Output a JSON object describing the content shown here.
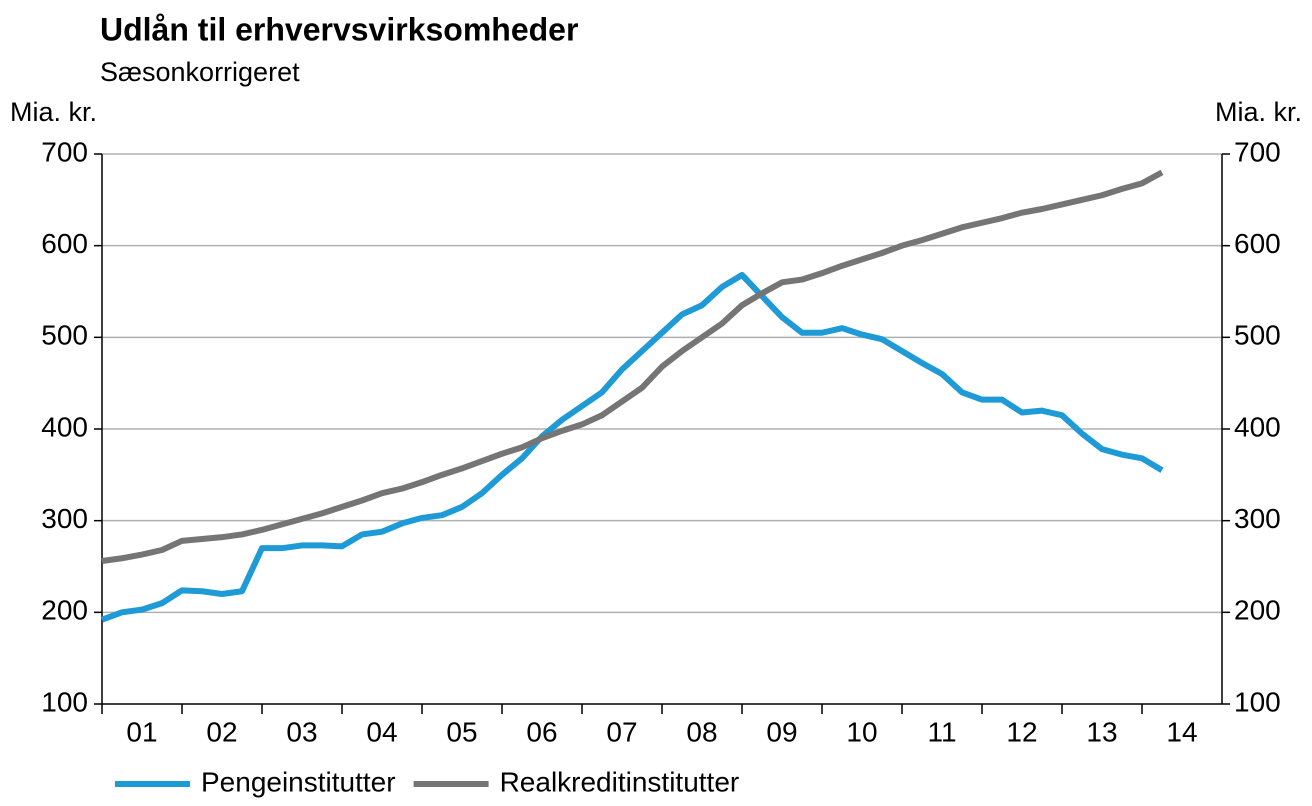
{
  "chart_data": {
    "type": "line",
    "title": "Udlån til erhvervsvirksomheder",
    "subtitle": "Sæsonkorrigeret",
    "ylabel": "Mia. kr.",
    "y2label": "Mia. kr.",
    "x": [
      2001,
      2001.25,
      2001.5,
      2001.75,
      2002,
      2002.25,
      2002.5,
      2002.75,
      2003,
      2003.25,
      2003.5,
      2003.75,
      2004,
      2004.25,
      2004.5,
      2004.75,
      2005,
      2005.25,
      2005.5,
      2005.75,
      2006,
      2006.25,
      2006.5,
      2006.75,
      2007,
      2007.25,
      2007.5,
      2007.75,
      2008,
      2008.25,
      2008.5,
      2008.75,
      2009,
      2009.25,
      2009.5,
      2009.75,
      2010,
      2010.25,
      2010.5,
      2010.75,
      2011,
      2011.25,
      2011.5,
      2011.75,
      2012,
      2012.25,
      2012.5,
      2012.75,
      2013,
      2013.25,
      2013.5,
      2013.75,
      2014,
      2014.25
    ],
    "series": [
      {
        "name": "Pengeinstitutter",
        "color": "#1e9ad6",
        "values": [
          192,
          200,
          203,
          210,
          224,
          223,
          220,
          223,
          270,
          270,
          273,
          273,
          272,
          285,
          288,
          297,
          303,
          306,
          315,
          330,
          350,
          368,
          392,
          410,
          425,
          440,
          465,
          485,
          505,
          525,
          535,
          555,
          568,
          545,
          522,
          505,
          505,
          510,
          503,
          498,
          485,
          472,
          460,
          440,
          432,
          432,
          418,
          420,
          415,
          395,
          378,
          372,
          368,
          355
        ]
      },
      {
        "name": "Realkreditinstitutter",
        "color": "#757575",
        "values": [
          256,
          259,
          263,
          268,
          278,
          280,
          282,
          285,
          290,
          296,
          302,
          308,
          315,
          322,
          330,
          335,
          342,
          350,
          357,
          365,
          373,
          380,
          390,
          398,
          405,
          415,
          430,
          445,
          468,
          485,
          500,
          515,
          535,
          548,
          560,
          563,
          570,
          578,
          585,
          592,
          600,
          606,
          613,
          620,
          625,
          630,
          636,
          640,
          645,
          650,
          655,
          662,
          668,
          680
        ]
      }
    ],
    "xlim": [
      2001,
      2015
    ],
    "xticks": [
      {
        "value": 2001,
        "label": "01"
      },
      {
        "value": 2002,
        "label": "02"
      },
      {
        "value": 2003,
        "label": "03"
      },
      {
        "value": 2004,
        "label": "04"
      },
      {
        "value": 2005,
        "label": "05"
      },
      {
        "value": 2006,
        "label": "06"
      },
      {
        "value": 2007,
        "label": "07"
      },
      {
        "value": 2008,
        "label": "08"
      },
      {
        "value": 2009,
        "label": "09"
      },
      {
        "value": 2010,
        "label": "10"
      },
      {
        "value": 2011,
        "label": "11"
      },
      {
        "value": 2012,
        "label": "12"
      },
      {
        "value": 2013,
        "label": "13"
      },
      {
        "value": 2014,
        "label": "14"
      }
    ],
    "ylim": [
      100,
      700
    ],
    "yticks": [
      100,
      200,
      300,
      400,
      500,
      600,
      700
    ],
    "y2lim": [
      100,
      700
    ],
    "y2ticks": [
      100,
      200,
      300,
      400,
      500,
      600,
      700
    ],
    "grid": true,
    "legend": "bottom"
  }
}
